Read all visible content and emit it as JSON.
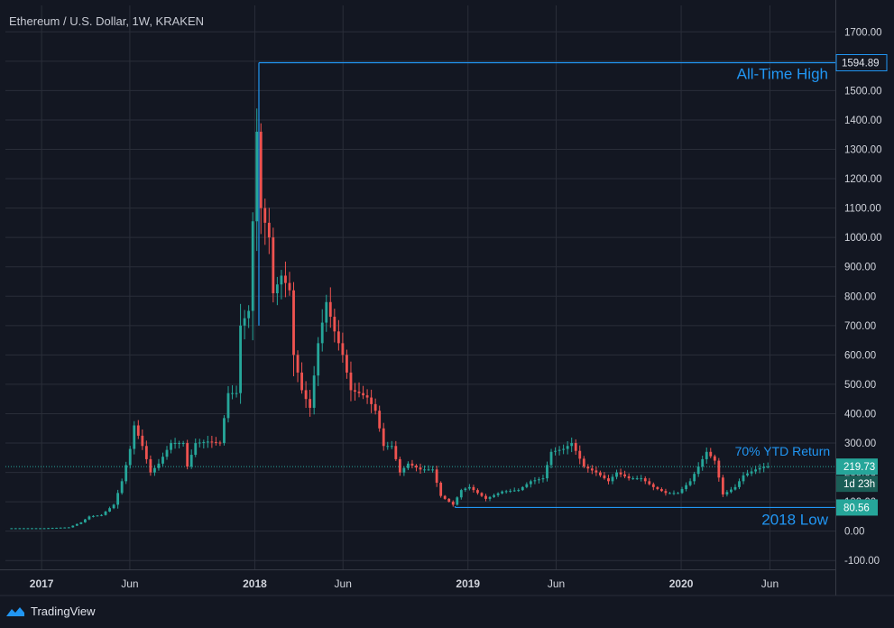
{
  "header": {
    "symbol_title": "Ethereum / U.S. Dollar, 1W, KRAKEN"
  },
  "footer": {
    "brand": "TradingView"
  },
  "colors": {
    "background": "#131722",
    "grid": "#2a2e39",
    "up": "#26a69a",
    "down": "#ef5350",
    "annotation": "#2196f3",
    "axis_text": "#d1d4dc",
    "price_tag": "#26a69a"
  },
  "chart_data": {
    "type": "candlestick",
    "timeframe": "1W",
    "exchange": "KRAKEN",
    "ylim": [
      -130,
      1790
    ],
    "y_ticks": [
      -100,
      0,
      100,
      200,
      300,
      400,
      500,
      600,
      700,
      800,
      900,
      1000,
      1100,
      1200,
      1300,
      1400,
      1500,
      1600,
      1700
    ],
    "y_tick_labels": [
      "-100.00",
      "0.00",
      "100.00",
      "200.00",
      "300.00",
      "400.00",
      "500.00",
      "600.00",
      "700.00",
      "800.00",
      "900.00",
      "1000.00",
      "1100.00",
      "1200.00",
      "1300.00",
      "1400.00",
      "1500.00",
      "1600.00",
      "1700.00"
    ],
    "x_range": [
      "2016-10-31",
      "2020-09-21"
    ],
    "x_ticks": [
      {
        "date": "2017-01-01",
        "label": "2017",
        "bold": true
      },
      {
        "date": "2017-06-01",
        "label": "Jun",
        "bold": false
      },
      {
        "date": "2018-01-01",
        "label": "2018",
        "bold": true
      },
      {
        "date": "2018-06-01",
        "label": "Jun",
        "bold": false
      },
      {
        "date": "2019-01-01",
        "label": "2019",
        "bold": true
      },
      {
        "date": "2019-06-01",
        "label": "Jun",
        "bold": false
      },
      {
        "date": "2020-01-01",
        "label": "2020",
        "bold": true
      },
      {
        "date": "2020-06-01",
        "label": "Jun",
        "bold": false
      }
    ],
    "price_tags": [
      {
        "value": 1594.89,
        "label": "1594.89",
        "kind": "outline"
      },
      {
        "value": 219.73,
        "label": "219.73",
        "kind": "filled",
        "sub_label": "1d 23h"
      },
      {
        "value": 80.56,
        "label": "80.56",
        "kind": "filled"
      }
    ],
    "annotations": [
      {
        "text": "All-Time High",
        "value": 1594.89,
        "position": "right",
        "size": "large"
      },
      {
        "text": "70% YTD Return",
        "value": 219.73,
        "position": "above-right",
        "size": "medium"
      },
      {
        "text": "2018 Low",
        "value": 80.56,
        "position": "below-right",
        "size": "large"
      }
    ],
    "reference_lines": [
      {
        "name": "all-time-high",
        "value": 1594.89,
        "from": "2018-01-08",
        "to": "right-edge",
        "vertical_from_low": true
      },
      {
        "name": "2018-low",
        "value": 80.56,
        "from": "2018-12-10",
        "to": "right-edge",
        "vertical_from_low": true
      },
      {
        "name": "current-price",
        "value": 219.73,
        "style": "dotted"
      }
    ],
    "anchors": [
      [
        "2016-11-07",
        10
      ],
      [
        "2017-01-09",
        10
      ],
      [
        "2017-02-20",
        13
      ],
      [
        "2017-03-13",
        30
      ],
      [
        "2017-03-27",
        50
      ],
      [
        "2017-04-17",
        55
      ],
      [
        "2017-05-08",
        90
      ],
      [
        "2017-05-22",
        170
      ],
      [
        "2017-06-05",
        280
      ],
      [
        "2017-06-12",
        360
      ],
      [
        "2017-06-26",
        290
      ],
      [
        "2017-07-10",
        200
      ],
      [
        "2017-07-24",
        230
      ],
      [
        "2017-08-14",
        300
      ],
      [
        "2017-09-04",
        300
      ],
      [
        "2017-09-11",
        220
      ],
      [
        "2017-09-25",
        300
      ],
      [
        "2017-10-16",
        305
      ],
      [
        "2017-11-06",
        300
      ],
      [
        "2017-11-20",
        470
      ],
      [
        "2017-12-04",
        470
      ],
      [
        "2017-12-11",
        700
      ],
      [
        "2017-12-25",
        750
      ],
      [
        "2018-01-08",
        1360
      ],
      [
        "2018-01-15",
        1100
      ],
      [
        "2018-01-29",
        1000
      ],
      [
        "2018-02-05",
        810
      ],
      [
        "2018-02-19",
        870
      ],
      [
        "2018-03-05",
        820
      ],
      [
        "2018-03-12",
        600
      ],
      [
        "2018-03-26,",
        480
      ],
      [
        "2018-04-09",
        420
      ],
      [
        "2018-04-23",
        640
      ],
      [
        "2018-05-07",
        780
      ],
      [
        "2018-05-21",
        680
      ],
      [
        "2018-06-04",
        600
      ],
      [
        "2018-06-18",
        480
      ],
      [
        "2018-07-02",
        470
      ],
      [
        "2018-07-16",
        455
      ],
      [
        "2018-07-30",
        410
      ],
      [
        "2018-08-13",
        290
      ],
      [
        "2018-08-27",
        290
      ],
      [
        "2018-09-10",
        200
      ],
      [
        "2018-09-24",
        230
      ],
      [
        "2018-10-15",
        210
      ],
      [
        "2018-11-05",
        210
      ],
      [
        "2018-11-19",
        120
      ],
      [
        "2018-12-10",
        90
      ],
      [
        "2018-12-24",
        140
      ],
      [
        "2019-01-07",
        150
      ],
      [
        "2019-02-04",
        110
      ],
      [
        "2019-03-04",
        135
      ],
      [
        "2019-04-01",
        140
      ],
      [
        "2019-04-22",
        170
      ],
      [
        "2019-05-13",
        180
      ],
      [
        "2019-05-27",
        270
      ],
      [
        "2019-06-17",
        280
      ],
      [
        "2019-07-01",
        300
      ],
      [
        "2019-07-22",
        220
      ],
      [
        "2019-08-12",
        200
      ],
      [
        "2019-09-02",
        170
      ],
      [
        "2019-09-16",
        200
      ],
      [
        "2019-10-07",
        180
      ],
      [
        "2019-10-28",
        180
      ],
      [
        "2019-11-18",
        150
      ],
      [
        "2019-12-09",
        130
      ],
      [
        "2019-12-30",
        130
      ],
      [
        "2020-01-20",
        170
      ],
      [
        "2020-02-03",
        220
      ],
      [
        "2020-02-17",
        270
      ],
      [
        "2020-03-02",
        240
      ],
      [
        "2020-03-16",
        125
      ],
      [
        "2020-04-06",
        150
      ],
      [
        "2020-04-20",
        190
      ],
      [
        "2020-05-11",
        210
      ],
      [
        "2020-05-25",
        220
      ]
    ]
  }
}
